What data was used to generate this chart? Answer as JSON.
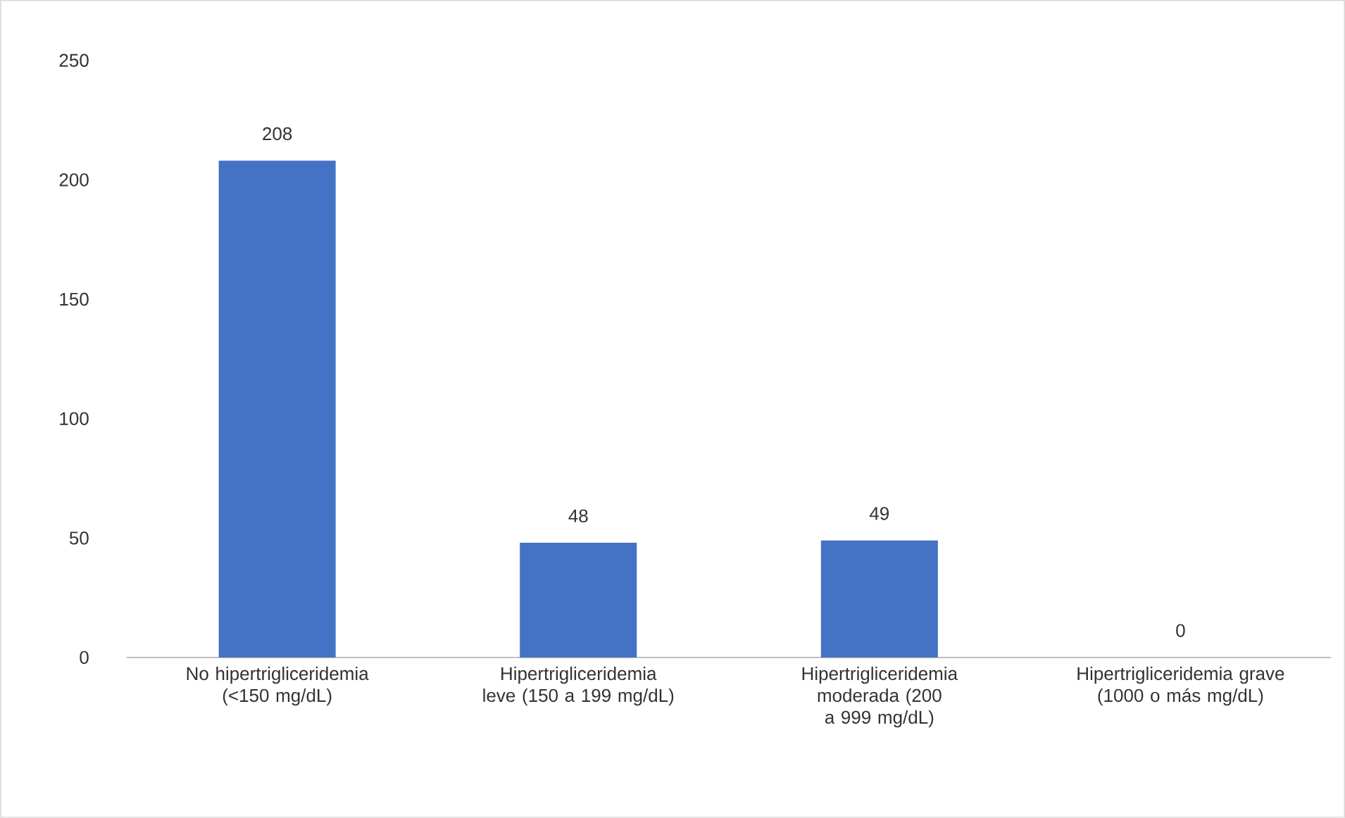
{
  "chart_data": {
    "type": "bar",
    "categories": [
      "No hipertrigliceridemia (<150 mg/dL)",
      "Hipertrigliceridemia leve (150 a 199 mg/dL)",
      "Hipertrigliceridemia moderada (200 a 999 mg/dL)",
      "Hipertrigliceridemia grave (1000 o más mg/dL)"
    ],
    "values": [
      208,
      48,
      49,
      0
    ],
    "color": "#4472c4",
    "ylim": [
      0,
      250
    ],
    "yticks": [
      0,
      50,
      100,
      150,
      200,
      250
    ],
    "data_labels": true
  }
}
